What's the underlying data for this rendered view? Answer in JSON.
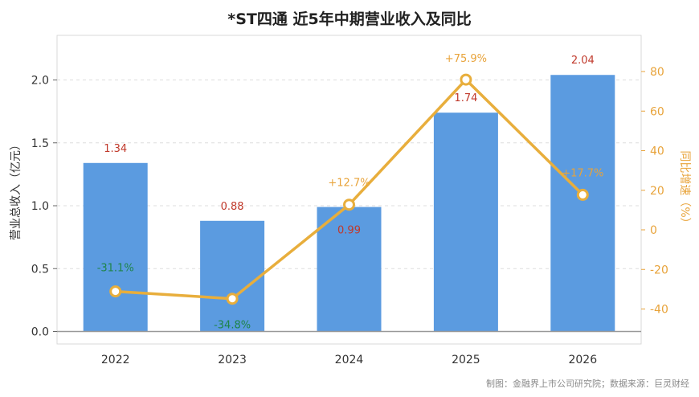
{
  "chart_data": {
    "type": "bar",
    "title": "*ST四通 近5年中期营业收入及同比",
    "categories": [
      "2022",
      "2023",
      "2024",
      "2025",
      "2026"
    ],
    "series": [
      {
        "name": "营业总收入",
        "type": "bar",
        "axis": "left",
        "values": [
          1.34,
          0.88,
          0.99,
          1.74,
          2.04
        ],
        "labels": [
          "1.34",
          "0.88",
          "0.99",
          "1.74",
          "2.04"
        ]
      },
      {
        "name": "同比增速",
        "type": "line",
        "axis": "right",
        "values": [
          -31.1,
          -34.8,
          12.7,
          75.9,
          17.7
        ],
        "labels": [
          "-31.1%",
          "-34.8%",
          "+12.7%",
          "+75.9%",
          "+17.7%"
        ]
      }
    ],
    "ylabel": "营业总收入（亿元）",
    "ylabel_right": "同比增速（%）",
    "ylim": [
      0,
      2.3
    ],
    "ylim_right": [
      -52,
      98
    ],
    "yticks": [
      "0.0",
      "0.5",
      "1.0",
      "1.5",
      "2.0"
    ],
    "yticks_right": [
      "-40",
      "-20",
      "0",
      "20",
      "40",
      "60",
      "80"
    ],
    "grid": "horizontal-dashed",
    "colors": {
      "bar": "#5B9BE0",
      "line": "#E8AE3C",
      "label_red": "#C0392B",
      "label_green": "#1E8449",
      "label_orange": "#E8A33A"
    }
  },
  "footer": "制图：金融界上市公司研究院；数据来源：巨灵财经"
}
